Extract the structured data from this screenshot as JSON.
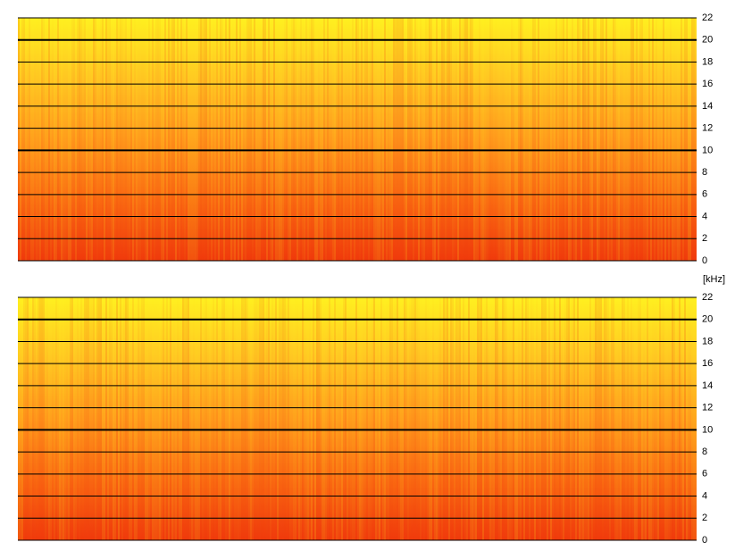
{
  "chart_data": [
    {
      "type": "spectrogram",
      "ylim": [
        0,
        22
      ],
      "yticks": [
        0,
        2,
        4,
        6,
        8,
        10,
        12,
        14,
        16,
        18,
        20,
        22
      ],
      "major_lines": [
        10,
        20
      ],
      "grid": true,
      "colors": [
        "#f03a0c",
        "#fa6a12",
        "#ff9a1c",
        "#ffc522",
        "#fff020"
      ]
    },
    {
      "type": "spectrogram",
      "y_label": "[kHz]",
      "ylim": [
        0,
        22
      ],
      "yticks": [
        0,
        2,
        4,
        6,
        8,
        10,
        12,
        14,
        16,
        18,
        20,
        22
      ],
      "major_lines": [
        10,
        20
      ],
      "grid": true,
      "colors": [
        "#f03a0c",
        "#fa6a12",
        "#ff9a1c",
        "#ffc522",
        "#fff020"
      ]
    }
  ]
}
